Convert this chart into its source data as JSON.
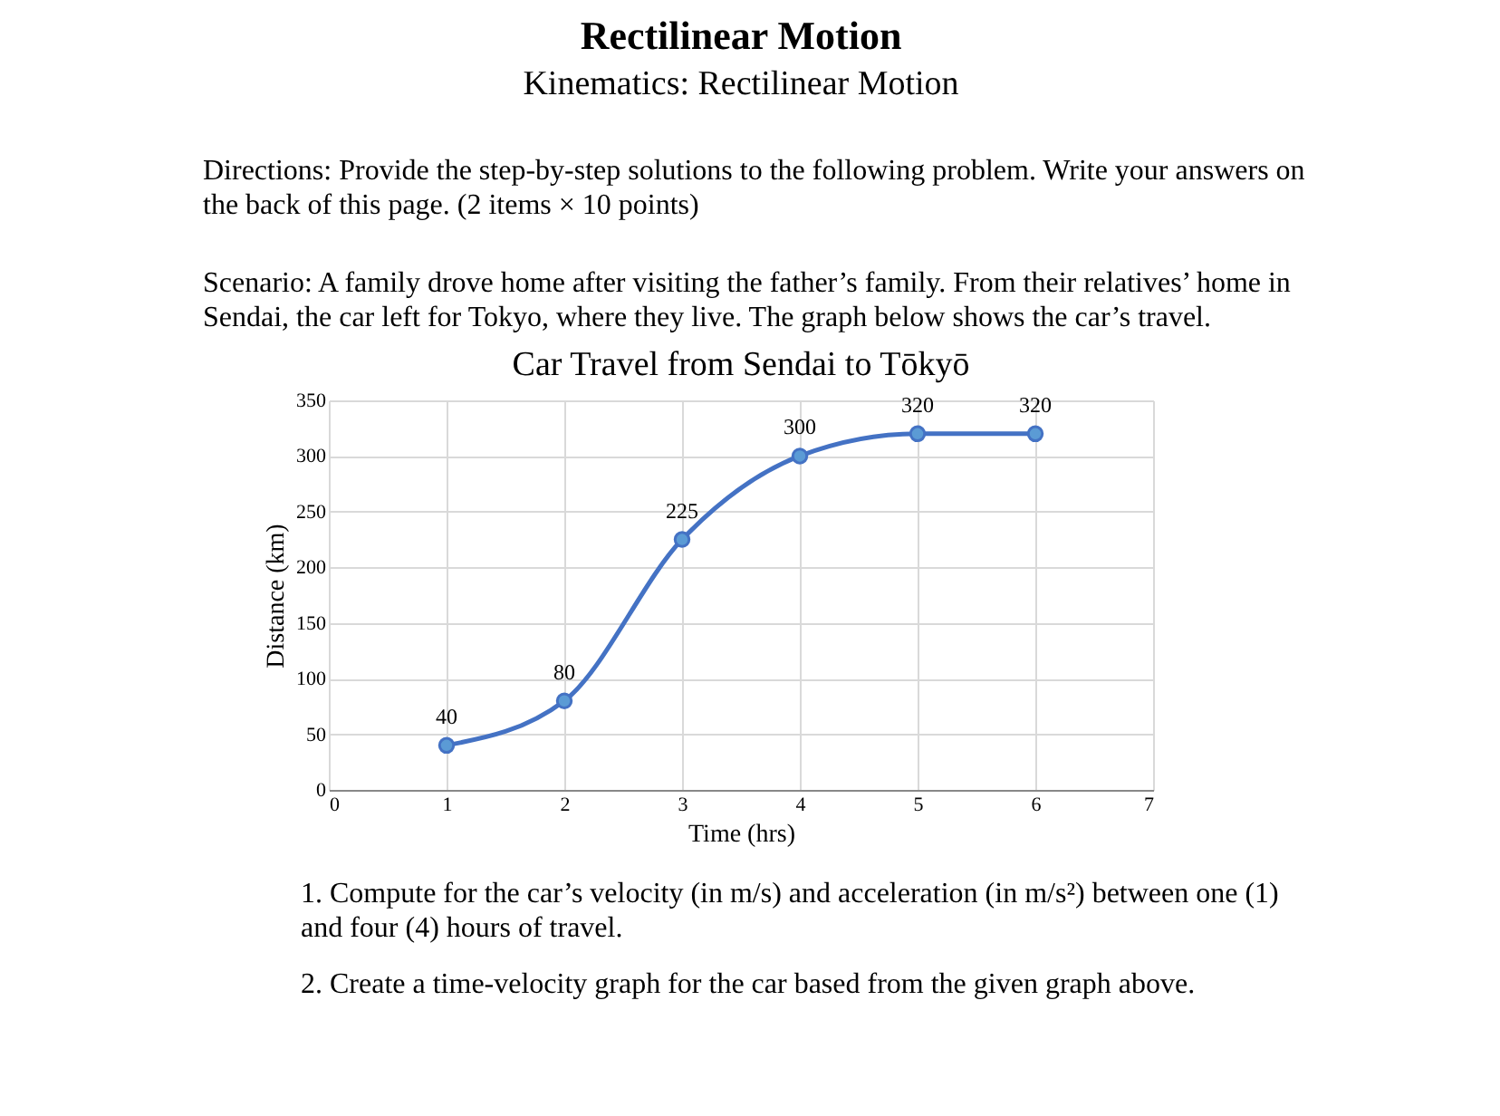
{
  "chart_data": {
    "type": "line",
    "title": "Car Travel from Sendai to Tōkyō",
    "xlabel": "Time (hrs)",
    "ylabel": "Distance (km)",
    "x": [
      1,
      2,
      3,
      4,
      5,
      6
    ],
    "series": [
      {
        "color": "#4472c4",
        "values": [
          40,
          80,
          225,
          300,
          320,
          320
        ]
      }
    ],
    "xlim": [
      0,
      7
    ],
    "xticks": [
      0,
      1,
      2,
      3,
      4,
      5,
      6,
      7
    ],
    "ylim": [
      0,
      350
    ],
    "yticks": [
      0,
      50,
      100,
      150,
      200,
      250,
      300,
      350
    ],
    "grid": true,
    "marker": "circle",
    "data_labels": true,
    "line_style": "solid",
    "annotations": [
      "Rectilinear Motion",
      "Kinematics: Rectilinear Motion",
      "Directions: Provide the step-by-step solutions to the following problem. Write your answers on the back of this page. (2 items × 10 points)",
      "Scenario: A family drove home after visiting the father’s family. From their relatives’ home in Sendai, the car left for Tokyo, where they live. The graph below shows the car’s travel.",
      "1. Compute for the car’s velocity (in m/s) and acceleration (in m/s²) between one (1) and four (4) hours of travel.",
      "2. Create a time-velocity graph for the car based from the given graph above."
    ]
  }
}
